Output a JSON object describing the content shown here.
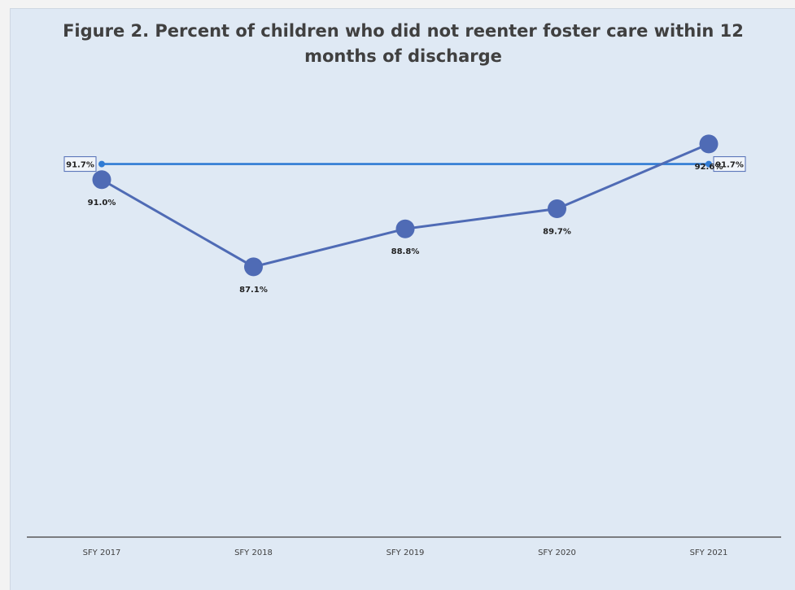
{
  "chart_data": {
    "type": "line",
    "title_line1": "Figure 2. Percent of children who did not reenter foster care within 12",
    "title_line2": "months of discharge",
    "categories": [
      "SFY 2017",
      "SFY 2018",
      "SFY 2019",
      "SFY 2020",
      "SFY 2021"
    ],
    "series": [
      {
        "values": [
          91.0,
          87.1,
          88.8,
          89.7,
          92.6
        ],
        "labels": [
          "91.0%",
          "87.1%",
          "88.8%",
          "89.7%",
          "92.6%"
        ],
        "color": "#4f6bb5",
        "marker": "circle"
      },
      {
        "values": [
          91.7,
          91.7,
          91.7,
          91.7,
          91.7
        ],
        "labels": [
          "91.7%",
          "",
          "",
          "",
          "91.7%"
        ],
        "color": "#2f7bd4",
        "marker": "small-circle"
      }
    ],
    "ylim": [
      75,
      95
    ],
    "grid": false,
    "legend": "none",
    "background": "#dfe9f4",
    "axis_color": "#595959"
  }
}
